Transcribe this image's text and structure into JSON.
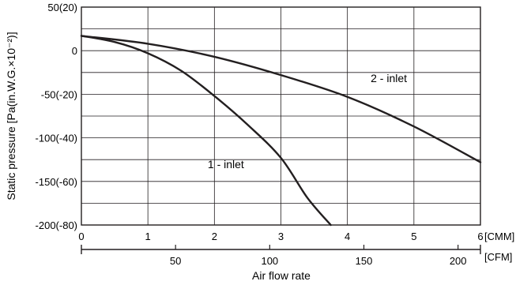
{
  "chart_data": {
    "type": "line",
    "title": "",
    "ylabel": "Static pressure [Pa(in.W.G.×10⁻²)]",
    "xlabel": "Air flow rate",
    "x_unit_primary": "[CMM]",
    "x_unit_secondary": "[CFM]",
    "xlim": [
      0,
      6
    ],
    "ylim": [
      -200,
      50
    ],
    "grid": true,
    "x_ticks": [
      {
        "value": 0,
        "label": "0"
      },
      {
        "value": 1,
        "label": "1"
      },
      {
        "value": 2,
        "label": "2"
      },
      {
        "value": 3,
        "label": "3"
      },
      {
        "value": 4,
        "label": "4"
      },
      {
        "value": 5,
        "label": "5"
      },
      {
        "value": 6,
        "label": "6"
      }
    ],
    "cfm_ticks": [
      {
        "value": 50,
        "label": "50"
      },
      {
        "value": 100,
        "label": "100"
      },
      {
        "value": 150,
        "label": "150"
      },
      {
        "value": 200,
        "label": "200"
      }
    ],
    "y_ticks": [
      {
        "value": 50,
        "label": "50(20)"
      },
      {
        "value": 0,
        "label": "0"
      },
      {
        "value": -50,
        "label": "-50(-20)"
      },
      {
        "value": -100,
        "label": "-100(-40)"
      },
      {
        "value": -150,
        "label": "-150(-60)"
      },
      {
        "value": -200,
        "label": "-200(-80)"
      }
    ],
    "series": [
      {
        "name": "1 - inlet",
        "color": "#231f20",
        "points": [
          [
            0,
            17
          ],
          [
            0.5,
            10
          ],
          [
            1,
            -3
          ],
          [
            1.5,
            -23
          ],
          [
            2,
            -52
          ],
          [
            2.5,
            -85
          ],
          [
            3,
            -123
          ],
          [
            3.4,
            -169
          ],
          [
            3.75,
            -200
          ]
        ]
      },
      {
        "name": "2 - inlet",
        "color": "#231f20",
        "points": [
          [
            0,
            17
          ],
          [
            1,
            8
          ],
          [
            2,
            -7
          ],
          [
            3,
            -28
          ],
          [
            4,
            -53
          ],
          [
            5,
            -87
          ],
          [
            6,
            -128
          ]
        ]
      }
    ],
    "annotations": [
      {
        "text": "2 - inlet",
        "x": 4.35,
        "y": -36
      },
      {
        "text": "1 - inlet",
        "x": 1.9,
        "y": -135
      }
    ]
  }
}
